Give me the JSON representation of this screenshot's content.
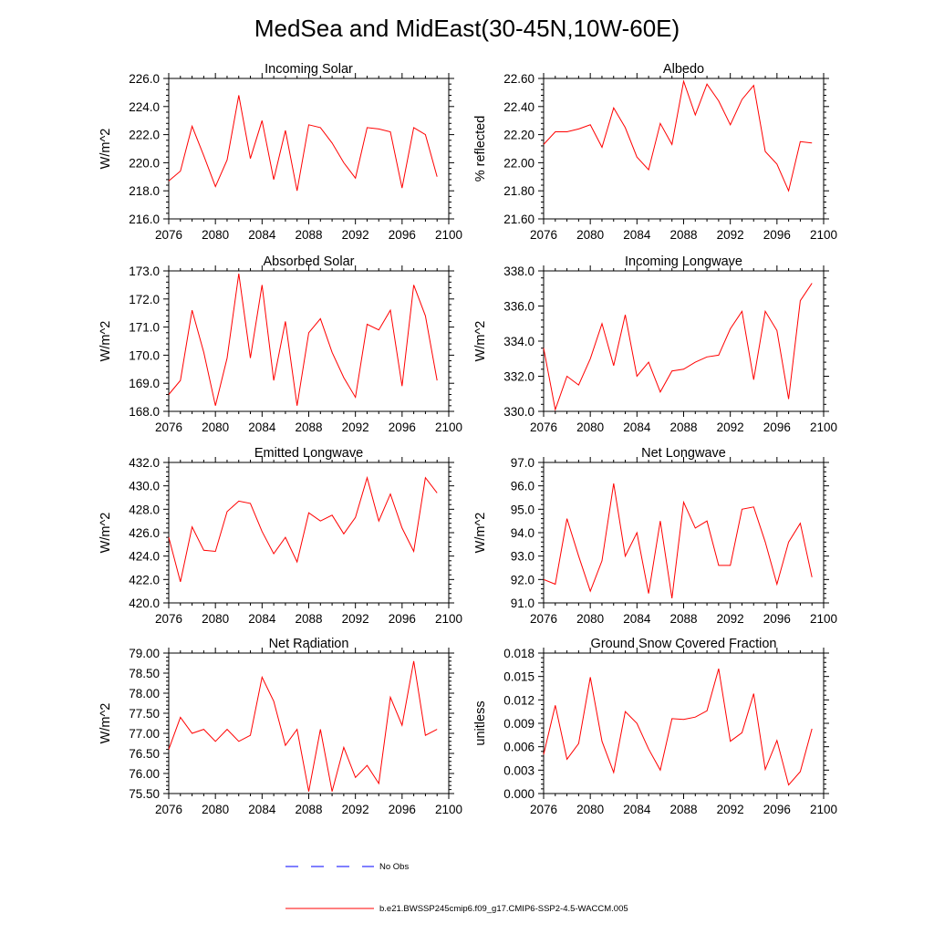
{
  "figure": {
    "title": "MedSea and MidEast(30-45N,10W-60E)"
  },
  "legend": [
    {
      "label": "No Obs",
      "color": "#0000ff",
      "dash": "dashed"
    },
    {
      "label": "b.e21.BWSSP245cmip6.f09_g17.CMIP6-SSP2-4.5-WACCM.005",
      "color": "#ff0000",
      "dash": "solid"
    }
  ],
  "chart_data": [
    {
      "type": "line",
      "title": "Incoming Solar",
      "xlabel": "",
      "ylabel": "W/m^2",
      "xlim": [
        2076,
        2100
      ],
      "ylim": [
        216,
        226
      ],
      "xticks": [
        2076,
        2080,
        2084,
        2088,
        2092,
        2096,
        2100
      ],
      "xtick_labels": [
        "2076",
        "2080",
        "2084",
        "2088",
        "2092",
        "2096",
        "2100"
      ],
      "yticks": [
        216,
        218,
        220,
        222,
        224,
        226
      ],
      "ytick_labels": [
        "216.0",
        "218.0",
        "220.0",
        "222.0",
        "224.0",
        "226.0"
      ],
      "x": [
        2076,
        2077,
        2078,
        2079,
        2080,
        2081,
        2082,
        2083,
        2084,
        2085,
        2086,
        2087,
        2088,
        2089,
        2090,
        2091,
        2092,
        2093,
        2094,
        2095,
        2096,
        2097,
        2098,
        2099
      ],
      "series": [
        {
          "color": "#ff0000",
          "values": [
            218.7,
            219.4,
            222.6,
            220.5,
            218.3,
            220.2,
            224.8,
            220.3,
            223.0,
            218.8,
            222.3,
            218.0,
            222.7,
            222.5,
            221.4,
            220.0,
            218.9,
            222.5,
            222.4,
            222.2,
            218.2,
            222.5,
            222.0,
            219.0
          ]
        }
      ]
    },
    {
      "type": "line",
      "title": "Albedo",
      "xlabel": "",
      "ylabel": "% reflected",
      "xlim": [
        2076,
        2100
      ],
      "ylim": [
        21.6,
        22.6
      ],
      "xticks": [
        2076,
        2080,
        2084,
        2088,
        2092,
        2096,
        2100
      ],
      "xtick_labels": [
        "2076",
        "2080",
        "2084",
        "2088",
        "2092",
        "2096",
        "2100"
      ],
      "yticks": [
        21.6,
        21.8,
        22.0,
        22.2,
        22.4,
        22.6
      ],
      "ytick_labels": [
        "21.60",
        "21.80",
        "22.00",
        "22.20",
        "22.40",
        "22.60"
      ],
      "x": [
        2076,
        2077,
        2078,
        2079,
        2080,
        2081,
        2082,
        2083,
        2084,
        2085,
        2086,
        2087,
        2088,
        2089,
        2090,
        2091,
        2092,
        2093,
        2094,
        2095,
        2096,
        2097,
        2098,
        2099
      ],
      "series": [
        {
          "color": "#ff0000",
          "values": [
            22.13,
            22.22,
            22.22,
            22.24,
            22.27,
            22.11,
            22.39,
            22.25,
            22.04,
            21.95,
            22.28,
            22.13,
            22.58,
            22.34,
            22.56,
            22.44,
            22.27,
            22.45,
            22.55,
            22.08,
            21.99,
            21.8,
            22.15,
            22.14
          ]
        }
      ]
    },
    {
      "type": "line",
      "title": "Absorbed Solar",
      "xlabel": "",
      "ylabel": "W/m^2",
      "xlim": [
        2076,
        2100
      ],
      "ylim": [
        168,
        173
      ],
      "xticks": [
        2076,
        2080,
        2084,
        2088,
        2092,
        2096,
        2100
      ],
      "xtick_labels": [
        "2076",
        "2080",
        "2084",
        "2088",
        "2092",
        "2096",
        "2100"
      ],
      "yticks": [
        168,
        169,
        170,
        171,
        172,
        173
      ],
      "ytick_labels": [
        "168.0",
        "169.0",
        "170.0",
        "171.0",
        "172.0",
        "173.0"
      ],
      "x": [
        2076,
        2077,
        2078,
        2079,
        2080,
        2081,
        2082,
        2083,
        2084,
        2085,
        2086,
        2087,
        2088,
        2089,
        2090,
        2091,
        2092,
        2093,
        2094,
        2095,
        2096,
        2097,
        2098,
        2099
      ],
      "series": [
        {
          "color": "#ff0000",
          "values": [
            168.6,
            169.1,
            171.6,
            170.1,
            168.2,
            169.9,
            172.9,
            169.9,
            172.5,
            169.1,
            171.2,
            168.2,
            170.8,
            171.3,
            170.1,
            169.2,
            168.5,
            171.1,
            170.9,
            171.6,
            168.9,
            172.5,
            171.4,
            169.1
          ]
        }
      ]
    },
    {
      "type": "line",
      "title": "Incoming Longwave",
      "xlabel": "",
      "ylabel": "W/m^2",
      "xlim": [
        2076,
        2100
      ],
      "ylim": [
        330,
        338
      ],
      "xticks": [
        2076,
        2080,
        2084,
        2088,
        2092,
        2096,
        2100
      ],
      "xtick_labels": [
        "2076",
        "2080",
        "2084",
        "2088",
        "2092",
        "2096",
        "2100"
      ],
      "yticks": [
        330,
        332,
        334,
        336,
        338
      ],
      "ytick_labels": [
        "330.0",
        "332.0",
        "334.0",
        "336.0",
        "338.0"
      ],
      "x": [
        2076,
        2077,
        2078,
        2079,
        2080,
        2081,
        2082,
        2083,
        2084,
        2085,
        2086,
        2087,
        2088,
        2089,
        2090,
        2091,
        2092,
        2093,
        2094,
        2095,
        2096,
        2097,
        2098,
        2099
      ],
      "series": [
        {
          "color": "#ff0000",
          "values": [
            333.6,
            330.1,
            332.0,
            331.5,
            333.0,
            335.0,
            332.6,
            335.5,
            332.0,
            332.8,
            331.1,
            332.3,
            332.4,
            332.8,
            333.1,
            333.2,
            334.7,
            335.7,
            331.8,
            335.7,
            334.6,
            330.7,
            336.3,
            337.3
          ]
        }
      ]
    },
    {
      "type": "line",
      "title": "Emitted Longwave",
      "xlabel": "",
      "ylabel": "W/m^2",
      "xlim": [
        2076,
        2100
      ],
      "ylim": [
        420,
        432
      ],
      "xticks": [
        2076,
        2080,
        2084,
        2088,
        2092,
        2096,
        2100
      ],
      "xtick_labels": [
        "2076",
        "2080",
        "2084",
        "2088",
        "2092",
        "2096",
        "2100"
      ],
      "yticks": [
        420,
        422,
        424,
        426,
        428,
        430,
        432
      ],
      "ytick_labels": [
        "420.0",
        "422.0",
        "424.0",
        "426.0",
        "428.0",
        "430.0",
        "432.0"
      ],
      "x": [
        2076,
        2077,
        2078,
        2079,
        2080,
        2081,
        2082,
        2083,
        2084,
        2085,
        2086,
        2087,
        2088,
        2089,
        2090,
        2091,
        2092,
        2093,
        2094,
        2095,
        2096,
        2097,
        2098,
        2099
      ],
      "series": [
        {
          "color": "#ff0000",
          "values": [
            425.6,
            421.8,
            426.5,
            424.5,
            424.4,
            427.8,
            428.7,
            428.5,
            426.1,
            424.2,
            425.6,
            423.5,
            427.7,
            427.0,
            427.5,
            425.9,
            427.3,
            430.7,
            427.0,
            429.3,
            426.4,
            424.4,
            430.7,
            429.4
          ]
        }
      ]
    },
    {
      "type": "line",
      "title": "Net Longwave",
      "xlabel": "",
      "ylabel": "W/m^2",
      "xlim": [
        2076,
        2100
      ],
      "ylim": [
        91,
        97
      ],
      "xticks": [
        2076,
        2080,
        2084,
        2088,
        2092,
        2096,
        2100
      ],
      "xtick_labels": [
        "2076",
        "2080",
        "2084",
        "2088",
        "2092",
        "2096",
        "2100"
      ],
      "yticks": [
        91,
        92,
        93,
        94,
        95,
        96,
        97
      ],
      "ytick_labels": [
        "91.0",
        "92.0",
        "93.0",
        "94.0",
        "95.0",
        "96.0",
        "97.0"
      ],
      "x": [
        2076,
        2077,
        2078,
        2079,
        2080,
        2081,
        2082,
        2083,
        2084,
        2085,
        2086,
        2087,
        2088,
        2089,
        2090,
        2091,
        2092,
        2093,
        2094,
        2095,
        2096,
        2097,
        2098,
        2099
      ],
      "series": [
        {
          "color": "#ff0000",
          "values": [
            92.0,
            91.8,
            94.6,
            93.0,
            91.5,
            92.8,
            96.1,
            93.0,
            94.0,
            91.4,
            94.5,
            91.2,
            95.3,
            94.2,
            94.5,
            92.6,
            92.6,
            95.0,
            95.1,
            93.6,
            91.8,
            93.6,
            94.4,
            92.1
          ]
        }
      ]
    },
    {
      "type": "line",
      "title": "Net Radiation",
      "xlabel": "",
      "ylabel": "W/m^2",
      "xlim": [
        2076,
        2100
      ],
      "ylim": [
        75.5,
        79.0
      ],
      "xticks": [
        2076,
        2080,
        2084,
        2088,
        2092,
        2096,
        2100
      ],
      "xtick_labels": [
        "2076",
        "2080",
        "2084",
        "2088",
        "2092",
        "2096",
        "2100"
      ],
      "yticks": [
        75.5,
        76.0,
        76.5,
        77.0,
        77.5,
        78.0,
        78.5,
        79.0
      ],
      "ytick_labels": [
        "75.50",
        "76.00",
        "76.50",
        "77.00",
        "77.50",
        "78.00",
        "78.50",
        "79.00"
      ],
      "x": [
        2076,
        2077,
        2078,
        2079,
        2080,
        2081,
        2082,
        2083,
        2084,
        2085,
        2086,
        2087,
        2088,
        2089,
        2090,
        2091,
        2092,
        2093,
        2094,
        2095,
        2096,
        2097,
        2098,
        2099
      ],
      "series": [
        {
          "color": "#ff0000",
          "values": [
            76.6,
            77.4,
            77.0,
            77.1,
            76.8,
            77.1,
            76.8,
            76.95,
            78.4,
            77.8,
            76.7,
            77.1,
            75.55,
            77.1,
            75.55,
            76.65,
            75.9,
            76.2,
            75.75,
            77.9,
            77.2,
            78.8,
            76.95,
            77.1
          ]
        }
      ]
    },
    {
      "type": "line",
      "title": "Ground Snow Covered Fraction",
      "xlabel": "",
      "ylabel": "unitless",
      "xlim": [
        2076,
        2100
      ],
      "ylim": [
        0,
        0.018
      ],
      "xticks": [
        2076,
        2080,
        2084,
        2088,
        2092,
        2096,
        2100
      ],
      "xtick_labels": [
        "2076",
        "2080",
        "2084",
        "2088",
        "2092",
        "2096",
        "2100"
      ],
      "yticks": [
        0,
        0.003,
        0.006,
        0.009,
        0.012,
        0.015,
        0.018
      ],
      "ytick_labels": [
        "0.000",
        "0.003",
        "0.006",
        "0.009",
        "0.012",
        "0.015",
        "0.018"
      ],
      "x": [
        2076,
        2077,
        2078,
        2079,
        2080,
        2081,
        2082,
        2083,
        2084,
        2085,
        2086,
        2087,
        2088,
        2089,
        2090,
        2091,
        2092,
        2093,
        2094,
        2095,
        2096,
        2097,
        2098,
        2099
      ],
      "series": [
        {
          "color": "#ff0000",
          "values": [
            0.005,
            0.0113,
            0.0044,
            0.0064,
            0.0149,
            0.0067,
            0.0027,
            0.0105,
            0.009,
            0.0057,
            0.003,
            0.0096,
            0.0095,
            0.0098,
            0.0106,
            0.016,
            0.0067,
            0.0078,
            0.0128,
            0.0031,
            0.0068,
            0.0011,
            0.0028,
            0.0083
          ]
        }
      ]
    }
  ]
}
